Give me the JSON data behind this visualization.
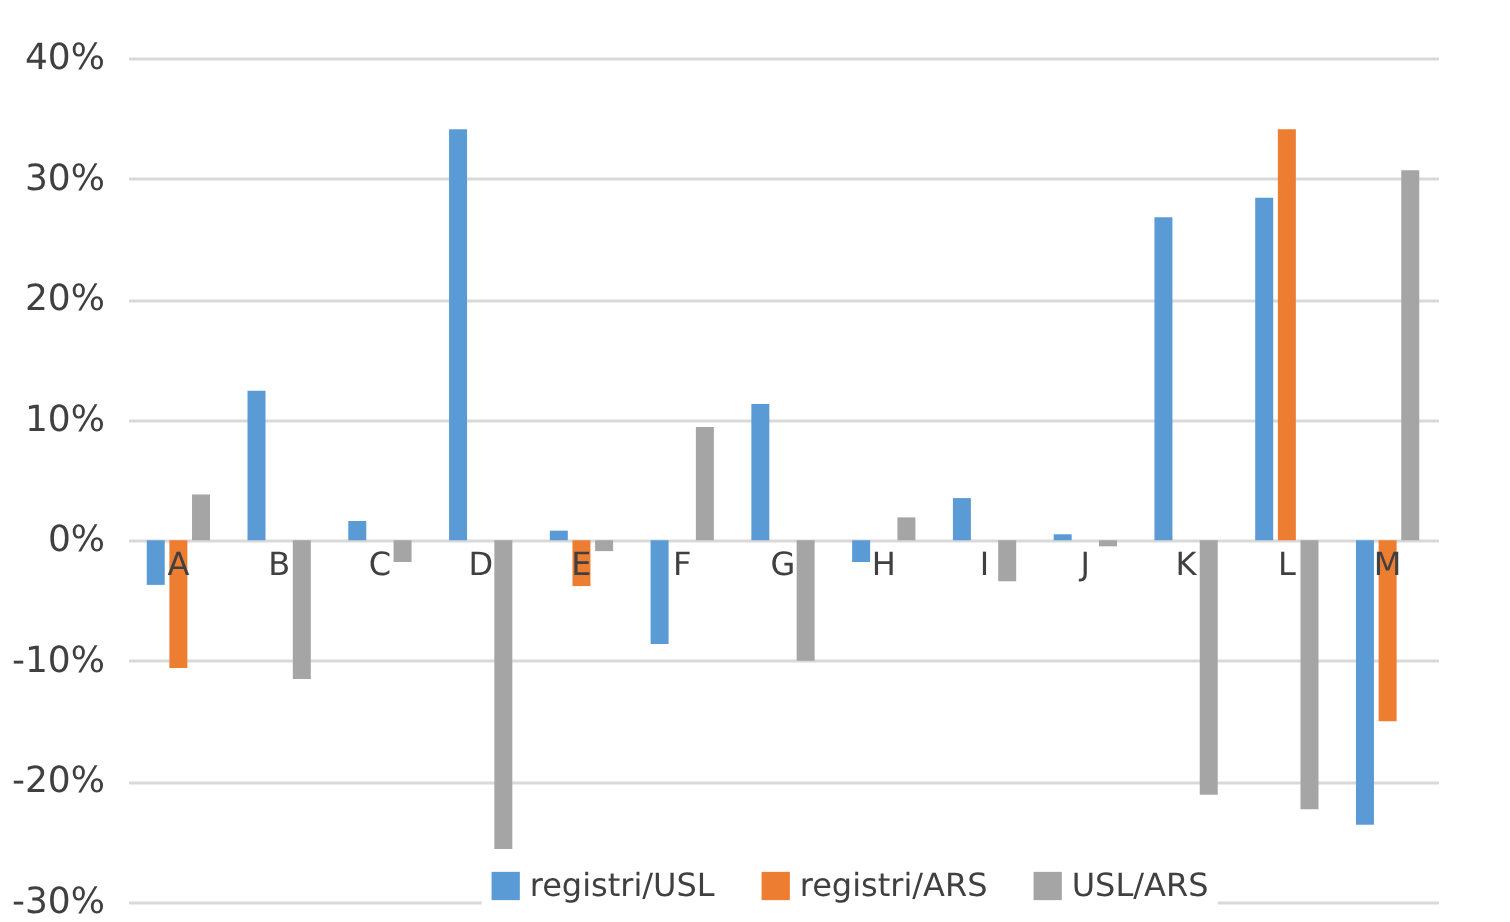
{
  "chart_data": {
    "type": "bar",
    "categories": [
      "A",
      "B",
      "C",
      "D",
      "E",
      "F",
      "G",
      "H",
      "I",
      "J",
      "K",
      "L",
      "M"
    ],
    "series": [
      {
        "name": "registri/USL",
        "color": "#5b9bd5",
        "values": [
          -3.7,
          12.4,
          1.6,
          34.1,
          0.8,
          -8.6,
          11.3,
          -1.8,
          3.5,
          0.5,
          26.8,
          28.4,
          -23.6
        ]
      },
      {
        "name": "registri/ARS",
        "color": "#ed7d31",
        "values": [
          -10.6,
          null,
          null,
          null,
          -3.8,
          null,
          null,
          null,
          null,
          null,
          null,
          34.1,
          -15.0
        ]
      },
      {
        "name": "USL/ARS",
        "color": "#a5a5a5",
        "values": [
          3.8,
          -11.5,
          -1.8,
          -25.6,
          -0.9,
          9.4,
          -10.0,
          1.9,
          -3.4,
          -0.5,
          -21.1,
          -22.3,
          30.7
        ]
      }
    ],
    "ylim": [
      -30,
      40
    ],
    "yticks": [
      {
        "value": -30,
        "label": "-30%"
      },
      {
        "value": -20,
        "label": "-20%"
      },
      {
        "value": -10,
        "label": "-10%"
      },
      {
        "value": 0,
        "label": "0%"
      },
      {
        "value": 10,
        "label": "10%"
      },
      {
        "value": 20,
        "label": "20%"
      },
      {
        "value": 30,
        "label": "30%"
      },
      {
        "value": 40,
        "label": "40%"
      }
    ],
    "grid": "y",
    "legend": "bottom"
  }
}
